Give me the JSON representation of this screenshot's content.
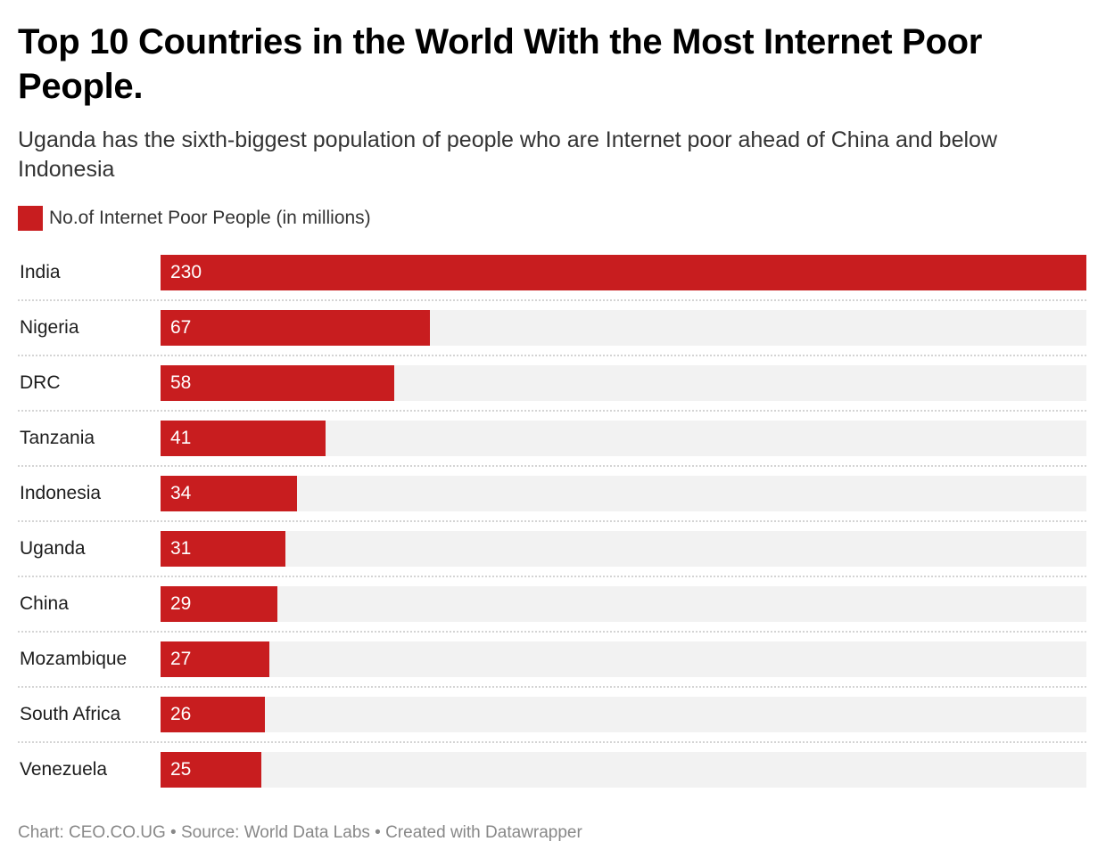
{
  "title": "Top 10 Countries in the World With the Most Internet Poor People.",
  "subtitle": "Uganda has the sixth-biggest population of people who are Internet poor ahead of China and below Indonesia",
  "footer": "Chart: CEO.CO.UG • Source: World Data Labs • Created with Datawrapper",
  "colors": {
    "bar": "#c81d1f",
    "track": "#f2f2f2"
  },
  "chart_data": {
    "type": "bar",
    "orientation": "horizontal",
    "title": "Top 10 Countries in the World With the Most Internet Poor People.",
    "legend": [
      "No.of Internet Poor People (in millions)"
    ],
    "categories": [
      "India",
      "Nigeria",
      "DRC",
      "Tanzania",
      "Indonesia",
      "Uganda",
      "China",
      "Mozambique",
      "South Africa",
      "Venezuela"
    ],
    "series": [
      {
        "name": "No.of Internet Poor People (in millions)",
        "values": [
          230,
          67,
          58,
          41,
          34,
          31,
          29,
          27,
          26,
          25
        ]
      }
    ],
    "xlim": [
      0,
      230
    ]
  }
}
